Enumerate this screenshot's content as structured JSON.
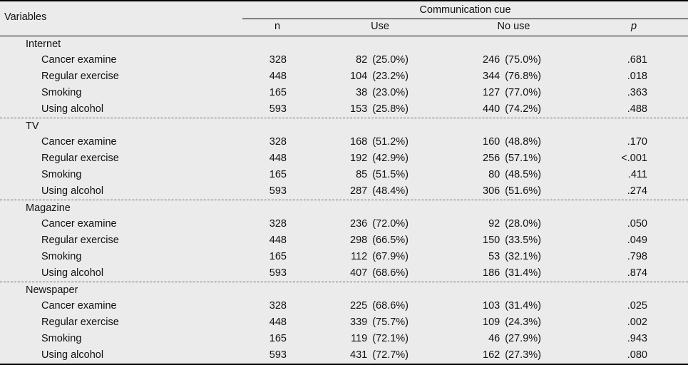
{
  "header": {
    "variables": "Variables",
    "group": "Communication  cue",
    "n": "n",
    "use": "Use",
    "no_use": "No  use",
    "p": "p"
  },
  "sections": [
    {
      "title": "Internet",
      "rows": [
        {
          "var": "Cancer  examine",
          "n": "328",
          "use": "82 (25.0%)",
          "nouse": "246 (75.0%)",
          "p": ".681"
        },
        {
          "var": "Regular  exercise",
          "n": "448",
          "use": "104 (23.2%)",
          "nouse": "344 (76.8%)",
          "p": ".018"
        },
        {
          "var": "Smoking",
          "n": "165",
          "use": "38 (23.0%)",
          "nouse": "127 (77.0%)",
          "p": ".363"
        },
        {
          "var": "Using  alcohol",
          "n": "593",
          "use": "153 (25.8%)",
          "nouse": "440 (74.2%)",
          "p": ".488"
        }
      ]
    },
    {
      "title": "TV",
      "rows": [
        {
          "var": "Cancer  examine",
          "n": "328",
          "use": "168 (51.2%)",
          "nouse": "160 (48.8%)",
          "p": ".170"
        },
        {
          "var": "Regular  exercise",
          "n": "448",
          "use": "192 (42.9%)",
          "nouse": "256 (57.1%)",
          "p": "<.001"
        },
        {
          "var": "Smoking",
          "n": "165",
          "use": "85 (51.5%)",
          "nouse": "80 (48.5%)",
          "p": ".411"
        },
        {
          "var": "Using  alcohol",
          "n": "593",
          "use": "287 (48.4%)",
          "nouse": "306 (51.6%)",
          "p": ".274"
        }
      ]
    },
    {
      "title": "Magazine",
      "rows": [
        {
          "var": "Cancer  examine",
          "n": "328",
          "use": "236 (72.0%)",
          "nouse": "92 (28.0%)",
          "p": ".050"
        },
        {
          "var": "Regular  exercise",
          "n": "448",
          "use": "298 (66.5%)",
          "nouse": "150 (33.5%)",
          "p": ".049"
        },
        {
          "var": "Smoking",
          "n": "165",
          "use": "112 (67.9%)",
          "nouse": "53 (32.1%)",
          "p": ".798"
        },
        {
          "var": "Using  alcohol",
          "n": "593",
          "use": "407 (68.6%)",
          "nouse": "186 (31.4%)",
          "p": ".874"
        }
      ]
    },
    {
      "title": "Newspaper",
      "rows": [
        {
          "var": "Cancer  examine",
          "n": "328",
          "use": "225 (68.6%)",
          "nouse": "103 (31.4%)",
          "p": ".025"
        },
        {
          "var": "Regular  exercise",
          "n": "448",
          "use": "339 (75.7%)",
          "nouse": "109 (24.3%)",
          "p": ".002"
        },
        {
          "var": "Smoking",
          "n": "165",
          "use": "119 (72.1%)",
          "nouse": "46 (27.9%)",
          "p": ".943"
        },
        {
          "var": "Using  alcohol",
          "n": "593",
          "use": "431 (72.7%)",
          "nouse": "162 (27.3%)",
          "p": ".080"
        }
      ]
    }
  ]
}
